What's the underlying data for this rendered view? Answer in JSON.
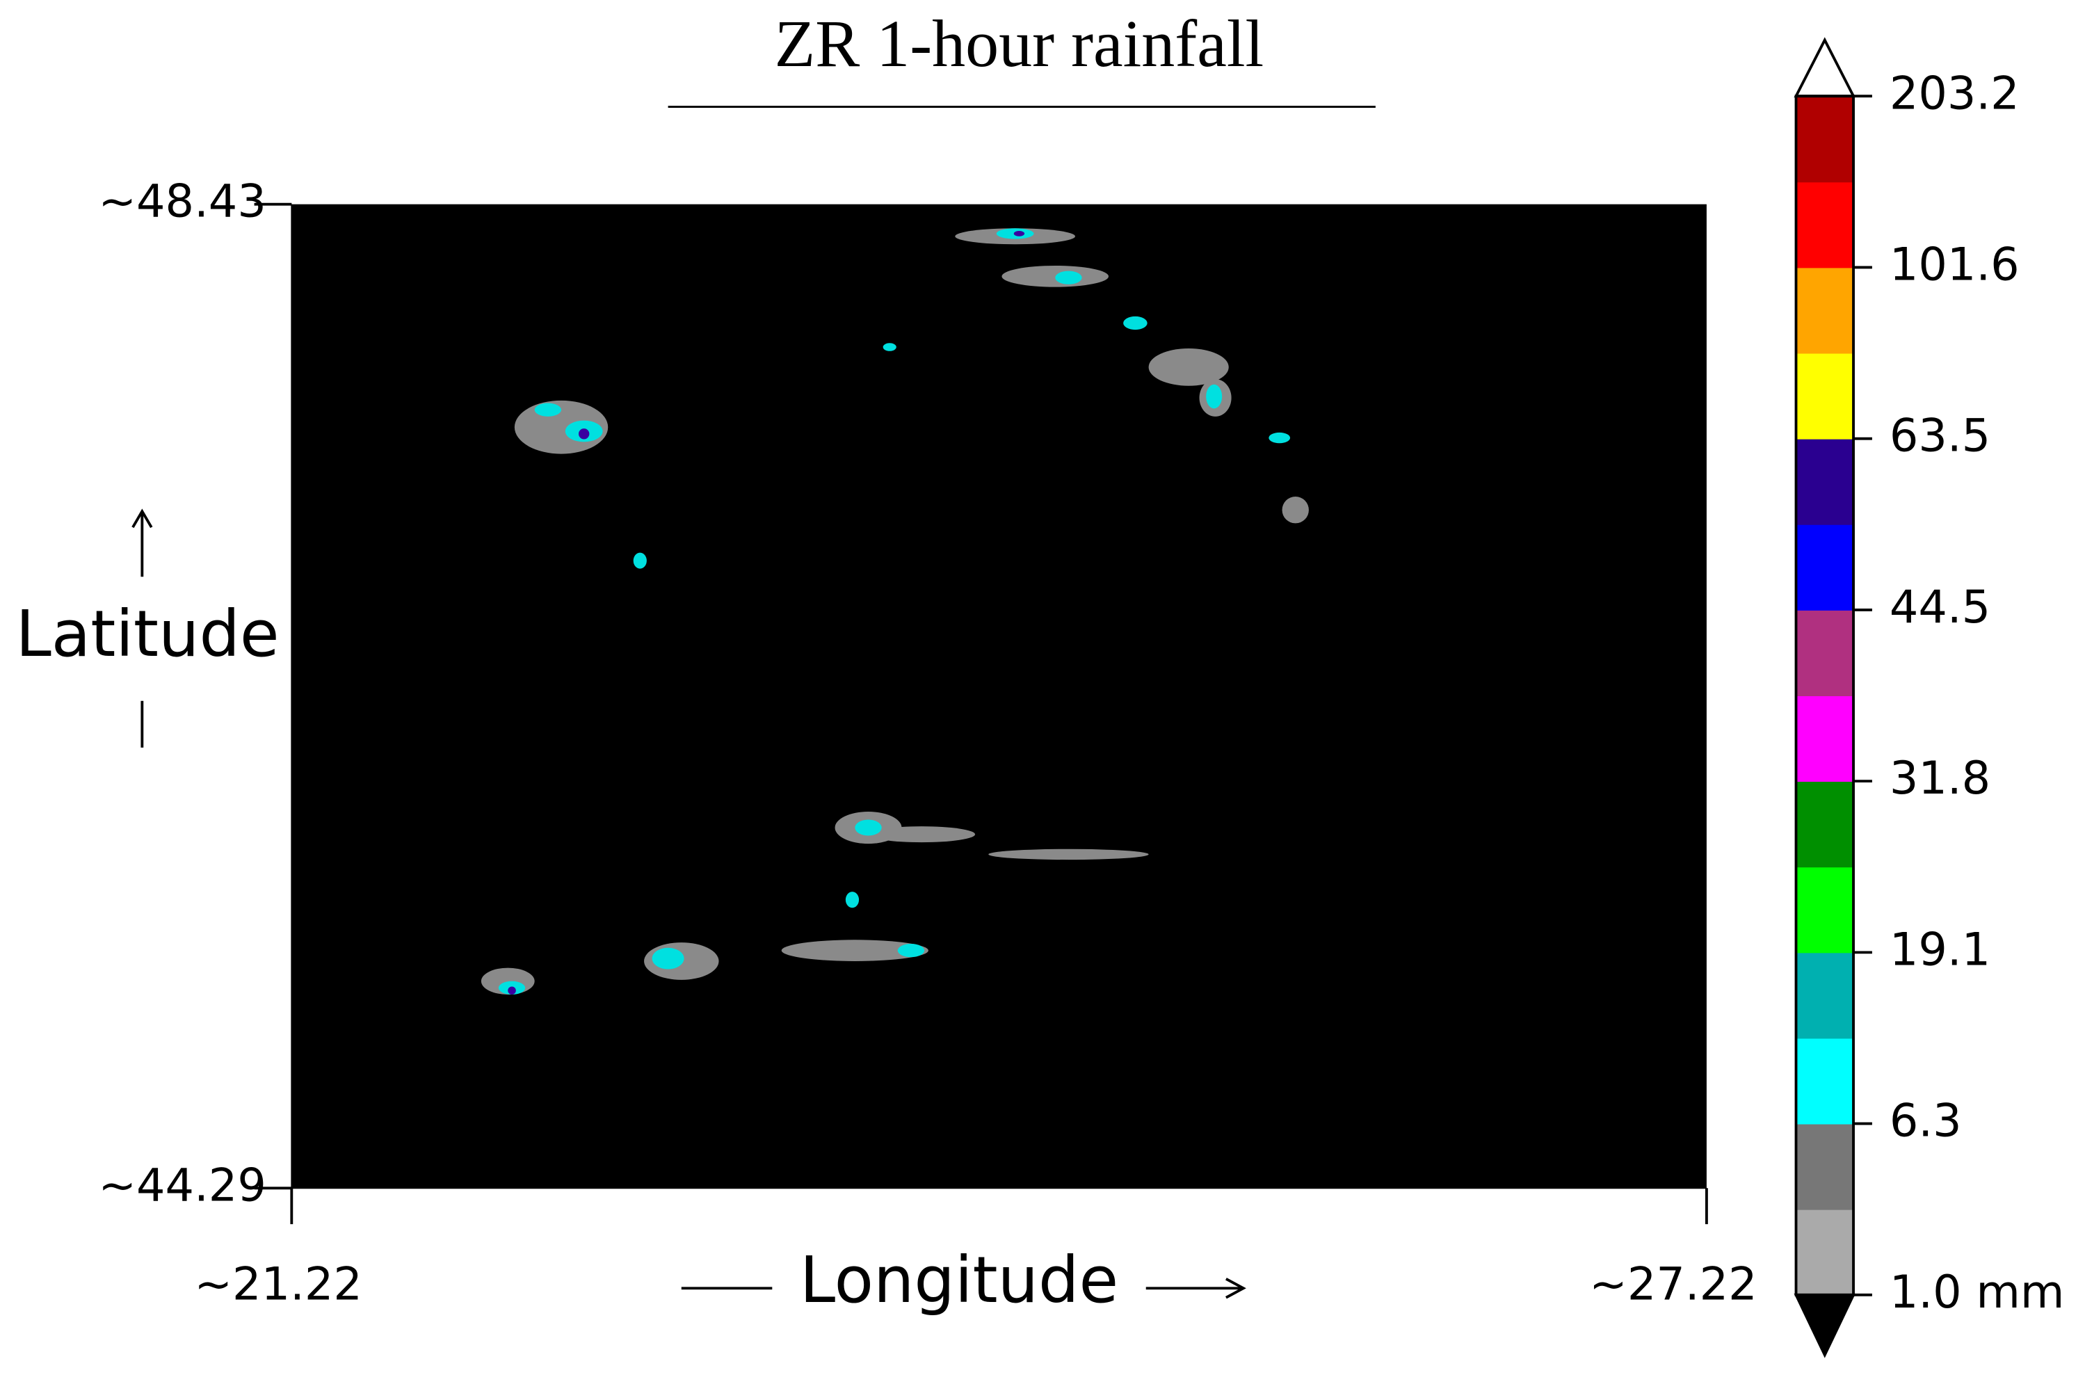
{
  "chart_data": {
    "type": "map",
    "title": "ZR 1-hour rainfall",
    "x_label": "Longitude",
    "y_label": "Latitude",
    "xlim": [
      21.22,
      27.22
    ],
    "ylim": [
      44.29,
      48.43
    ],
    "xticks": [
      {
        "value": 21.22,
        "label": "~21.22"
      },
      {
        "value": 27.22,
        "label": "~27.22"
      }
    ],
    "yticks": [
      {
        "value": 44.29,
        "label": "~44.29"
      },
      {
        "value": 48.43,
        "label": "~48.43"
      }
    ],
    "colorbar": {
      "ticks": [
        {
          "value": 1.0,
          "label": "1.0 mm"
        },
        6.3,
        19.1,
        31.8,
        44.5,
        63.5,
        101.6,
        203.2
      ],
      "colors": [
        "#aaaaaa",
        "#777777",
        "#00ffff",
        "#00b0b0",
        "#00ff00",
        "#008f00",
        "#ff00ff",
        "#b03080",
        "#0000ff",
        "#2a0090",
        "#ffff00",
        "#ffa500",
        "#ff0000",
        "#b00000"
      ]
    }
  }
}
